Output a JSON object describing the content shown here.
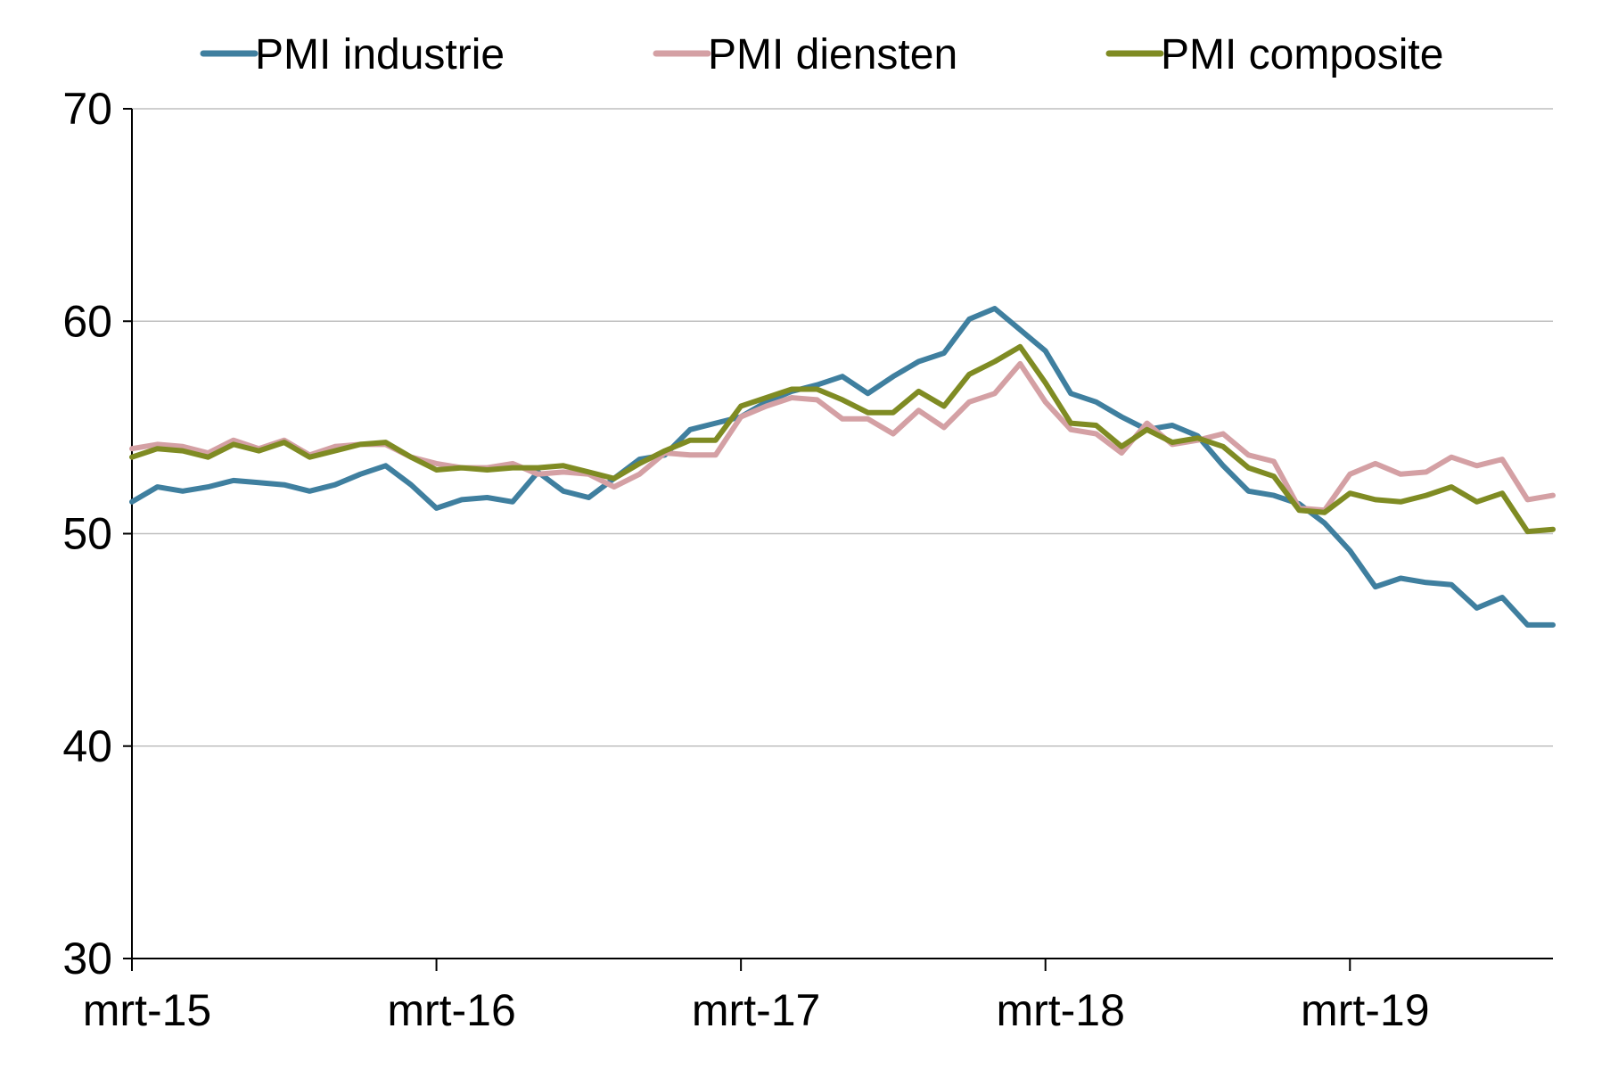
{
  "chart_data": {
    "type": "line",
    "title": "",
    "xlabel": "",
    "ylabel": "",
    "ylim": [
      30,
      70
    ],
    "yticks": [
      30,
      40,
      50,
      60,
      70
    ],
    "xticks": [
      "mrt-15",
      "mrt-16",
      "mrt-17",
      "mrt-18",
      "mrt-19"
    ],
    "x": [
      "mrt-15",
      "apr-15",
      "mei-15",
      "jun-15",
      "jul-15",
      "aug-15",
      "sep-15",
      "okt-15",
      "nov-15",
      "dec-15",
      "jan-16",
      "feb-16",
      "mrt-16",
      "apr-16",
      "mei-16",
      "jun-16",
      "jul-16",
      "aug-16",
      "sep-16",
      "okt-16",
      "nov-16",
      "dec-16",
      "jan-17",
      "feb-17",
      "mrt-17",
      "apr-17",
      "mei-17",
      "jun-17",
      "jul-17",
      "aug-17",
      "sep-17",
      "okt-17",
      "nov-17",
      "dec-17",
      "jan-18",
      "feb-18",
      "mrt-18",
      "apr-18",
      "mei-18",
      "jun-18",
      "jul-18",
      "aug-18",
      "sep-18",
      "okt-18",
      "nov-18",
      "dec-18",
      "jan-19",
      "feb-19",
      "mrt-19",
      "apr-19",
      "mei-19",
      "jun-19",
      "jul-19",
      "aug-19",
      "sep-19",
      "okt-19",
      "nov-19"
    ],
    "grid": true,
    "legend_position": "top",
    "series": [
      {
        "name": "PMI industrie",
        "color": "#3f7f9f",
        "values": [
          51.5,
          52.2,
          52.0,
          52.2,
          52.5,
          52.4,
          52.3,
          52.0,
          52.3,
          52.8,
          53.2,
          52.3,
          51.2,
          51.6,
          51.7,
          51.5,
          52.9,
          52.0,
          51.7,
          52.6,
          53.5,
          53.7,
          54.9,
          55.2,
          55.5,
          56.2,
          56.7,
          57.0,
          57.4,
          56.6,
          57.4,
          58.1,
          58.5,
          60.1,
          60.6,
          59.6,
          58.6,
          56.6,
          56.2,
          55.5,
          54.9,
          55.1,
          54.6,
          53.2,
          52.0,
          51.8,
          51.4,
          50.5,
          49.2,
          47.5,
          47.9,
          47.7,
          47.6,
          46.5,
          47.0,
          45.7,
          45.7
        ]
      },
      {
        "name": "PMI diensten",
        "color": "#d4a0a4",
        "values": [
          54.0,
          54.2,
          54.1,
          53.8,
          54.4,
          54.0,
          54.4,
          53.7,
          54.1,
          54.2,
          54.2,
          53.6,
          53.3,
          53.1,
          53.1,
          53.3,
          52.8,
          52.9,
          52.8,
          52.2,
          52.8,
          53.8,
          53.7,
          53.7,
          55.5,
          56.0,
          56.4,
          56.3,
          55.4,
          55.4,
          54.7,
          55.8,
          55.0,
          56.2,
          56.6,
          58.0,
          56.2,
          54.9,
          54.7,
          53.8,
          55.2,
          54.2,
          54.4,
          54.7,
          53.7,
          53.4,
          51.2,
          51.1,
          52.8,
          53.3,
          52.8,
          52.9,
          53.6,
          53.2,
          53.5,
          51.6,
          51.8
        ]
      },
      {
        "name": "PMI composite",
        "color": "#7f8b23",
        "values": [
          53.6,
          54.0,
          53.9,
          53.6,
          54.2,
          53.9,
          54.3,
          53.6,
          53.9,
          54.2,
          54.3,
          53.6,
          53.0,
          53.1,
          53.0,
          53.1,
          53.1,
          53.2,
          52.9,
          52.6,
          53.3,
          53.9,
          54.4,
          54.4,
          56.0,
          56.4,
          56.8,
          56.8,
          56.3,
          55.7,
          55.7,
          56.7,
          56.0,
          57.5,
          58.1,
          58.8,
          57.1,
          55.2,
          55.1,
          54.1,
          54.9,
          54.3,
          54.5,
          54.1,
          53.1,
          52.7,
          51.1,
          51.0,
          51.9,
          51.6,
          51.5,
          51.8,
          52.2,
          51.5,
          51.9,
          50.1,
          50.2
        ]
      }
    ]
  }
}
